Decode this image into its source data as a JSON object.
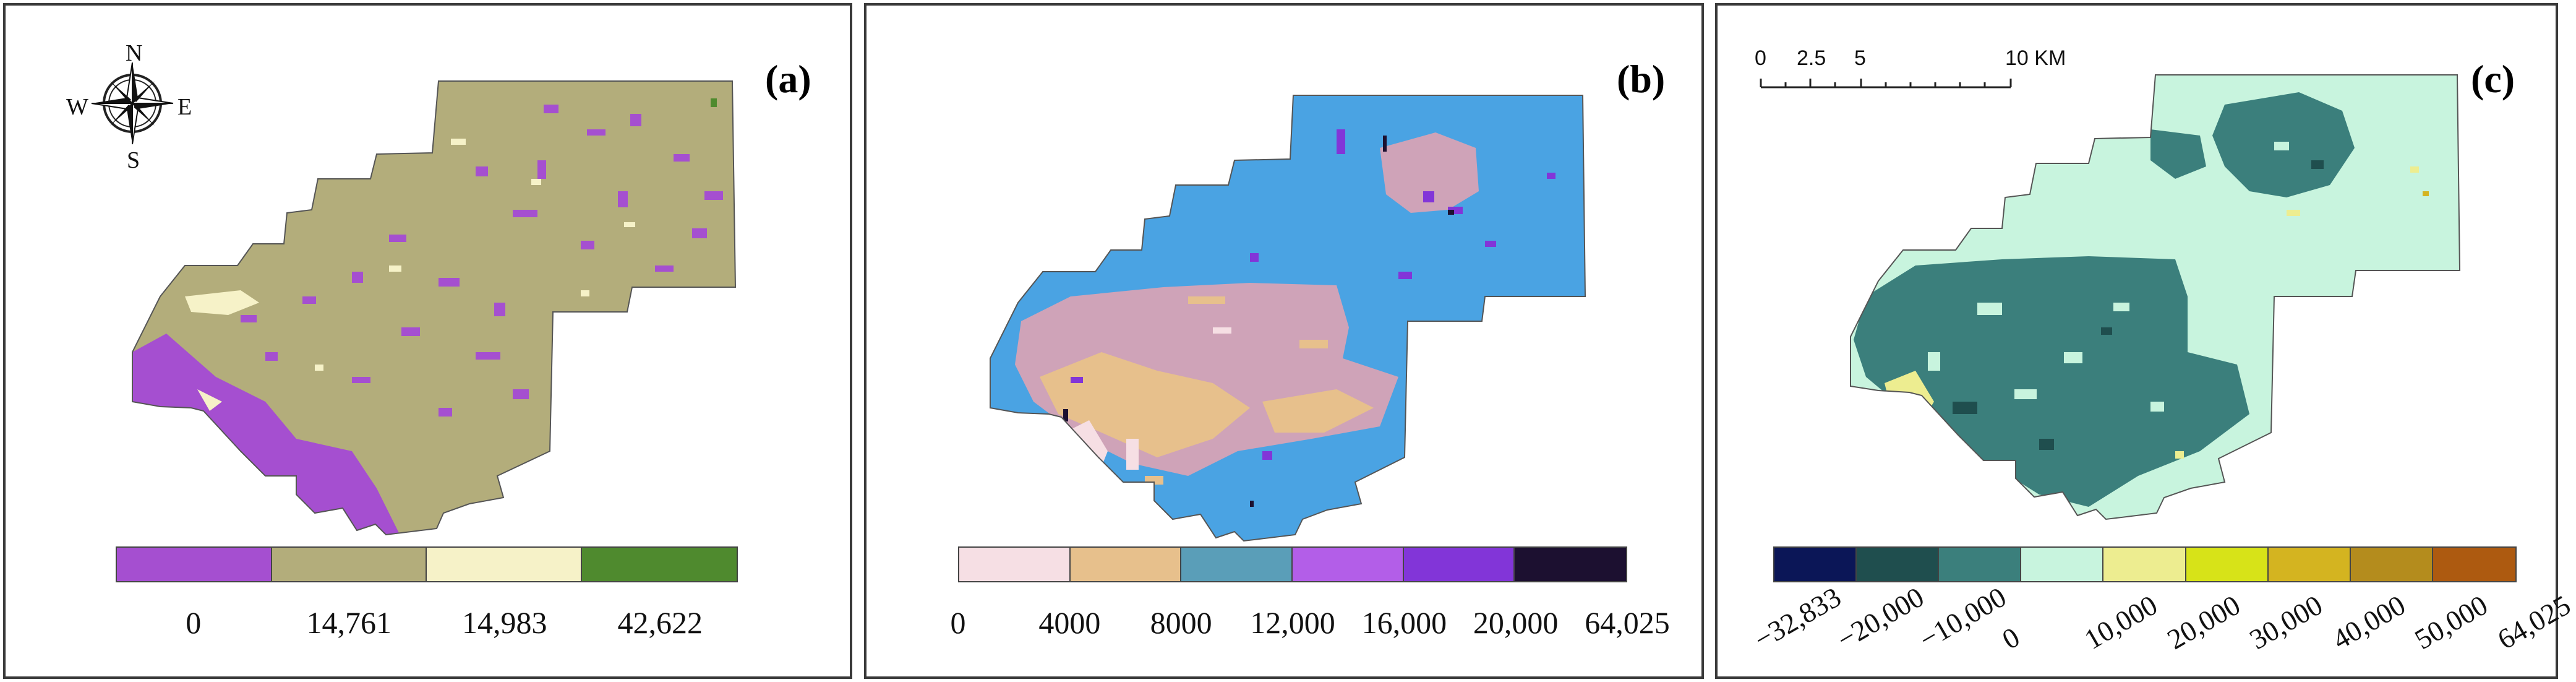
{
  "panels": {
    "a": {
      "label": "(a)",
      "compass": {
        "n": "N",
        "s": "S",
        "e": "E",
        "w": "W"
      },
      "legend_colors": [
        "#a54fd0",
        "#b3ad7b",
        "#f6f2c8",
        "#4f8a2e"
      ],
      "legend_ticks": [
        "0",
        "14,761",
        "14,983",
        "42,622"
      ]
    },
    "b": {
      "label": "(b)",
      "legend_colors": [
        "#f6dfe4",
        "#e7c08c",
        "#5a9eb8",
        "#b35ee8",
        "#8235d8",
        "#1c1030"
      ],
      "legend_ticks": [
        "0",
        "4000",
        "8000",
        "12,000",
        "16,000",
        "20,000",
        "64,025"
      ]
    },
    "c": {
      "label": "(c)",
      "scale_bar": {
        "labels": [
          "0",
          "2.5",
          "5",
          "10 KM"
        ]
      },
      "legend_colors": [
        "#0b1657",
        "#1f4e4e",
        "#3b7f7c",
        "#c8f4de",
        "#eded90",
        "#d7e318",
        "#d4b420",
        "#b48c1d",
        "#ad5a10"
      ],
      "legend_ticks": [
        "−32,833",
        "−20,000",
        "−10,000",
        "0",
        "10,000",
        "20,000",
        "30,000",
        "40,000",
        "50,000",
        "64,025"
      ]
    }
  }
}
